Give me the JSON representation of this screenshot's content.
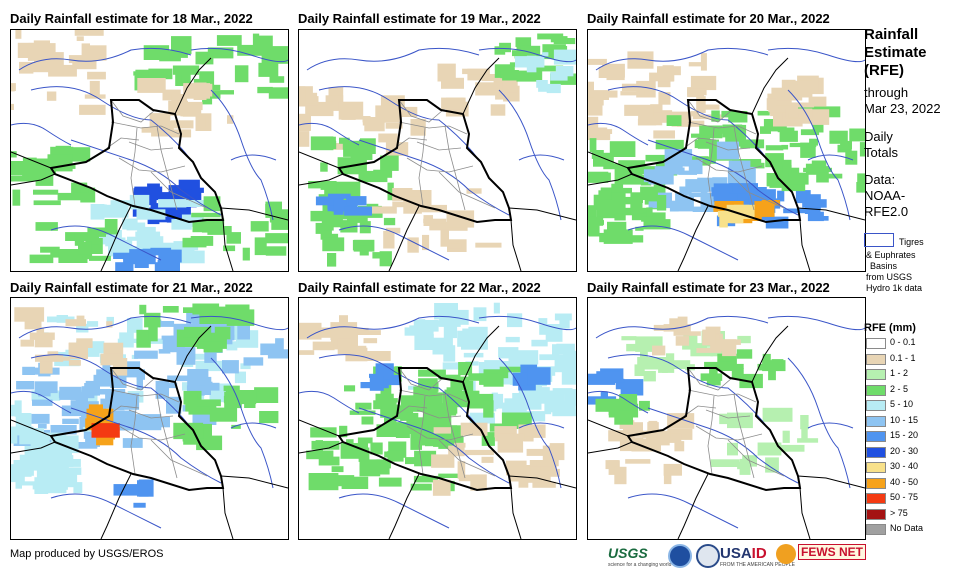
{
  "panels": [
    {
      "title": "Daily Rainfall estimate for 18 Mar., 2022"
    },
    {
      "title": "Daily Rainfall estimate for 19 Mar., 2022"
    },
    {
      "title": "Daily Rainfall estimate for 20 Mar., 2022"
    },
    {
      "title": "Daily Rainfall estimate for 21 Mar., 2022"
    },
    {
      "title": "Daily Rainfall estimate for 22 Mar., 2022"
    },
    {
      "title": "Daily Rainfall estimate for 23 Mar., 2022"
    }
  ],
  "side": {
    "title_lines": [
      "Rainfall",
      "Estimate",
      "(RFE)"
    ],
    "through_lines": [
      "through",
      "Mar 23, 2022"
    ],
    "totals_lines": [
      "Daily",
      "Totals"
    ],
    "data_lines": [
      "Data:",
      "NOAA-",
      "RFE2.0"
    ],
    "basin_label": "Tigres",
    "basin_lines": [
      "& Euphrates",
      "Basins",
      "from USGS",
      "Hydro 1k data"
    ],
    "basin_color": "#3a55c8"
  },
  "legend": {
    "title": "RFE (mm)",
    "items": [
      {
        "label": "0 - 0.1",
        "color": "#ffffff"
      },
      {
        "label": "0.1 - 1",
        "color": "#e8d5b5"
      },
      {
        "label": "1 - 2",
        "color": "#b6f0b0"
      },
      {
        "label": "2 - 5",
        "color": "#6fdc6a"
      },
      {
        "label": "5 - 10",
        "color": "#b8ecf4"
      },
      {
        "label": "10 - 15",
        "color": "#8ec4f2"
      },
      {
        "label": "15 - 20",
        "color": "#4f94f0"
      },
      {
        "label": "20 - 30",
        "color": "#2050e0"
      },
      {
        "label": "30 - 40",
        "color": "#f8e18a"
      },
      {
        "label": "40 - 50",
        "color": "#f6a21a"
      },
      {
        "label": "50 - 75",
        "color": "#f43a12"
      },
      {
        "label": "> 75",
        "color": "#a41212"
      },
      {
        "label": "No Data",
        "color": "#a0a0a0"
      }
    ]
  },
  "credit": "Map produced by USGS/EROS",
  "logos": {
    "usgs": "USGS",
    "usgs_tag": "science for a changing world",
    "usaid_a": "USA",
    "usaid_b": "ID",
    "usaid_tag": "FROM THE AMERICAN PEOPLE",
    "fews": "FEWS NET"
  }
}
